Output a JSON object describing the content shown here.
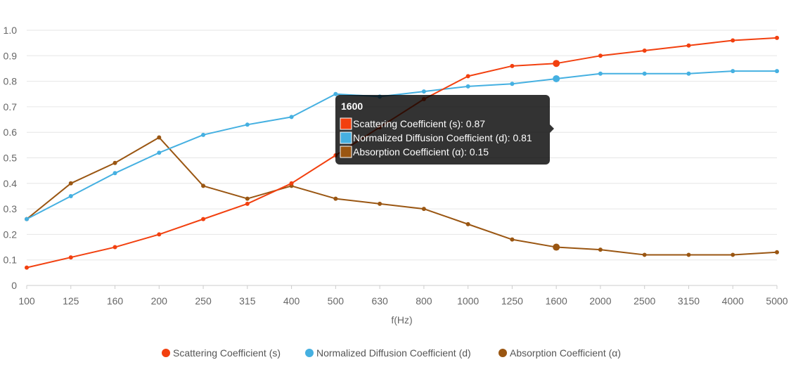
{
  "chart_data": {
    "type": "line",
    "title": "",
    "xlabel": "f(Hz)",
    "ylabel": "",
    "categories": [
      "100",
      "125",
      "160",
      "200",
      "250",
      "315",
      "400",
      "500",
      "630",
      "800",
      "1000",
      "1250",
      "1600",
      "2000",
      "2500",
      "3150",
      "4000",
      "5000"
    ],
    "ylim": [
      0,
      1.0
    ],
    "yticks": [
      0,
      0.1,
      0.2,
      0.3,
      0.4,
      0.5,
      0.6,
      0.7,
      0.8,
      0.9,
      1.0
    ],
    "ytick_labels": [
      "0",
      "0.1",
      "0.2",
      "0.3",
      "0.4",
      "0.5",
      "0.6",
      "0.7",
      "0.8",
      "0.9",
      "1.0"
    ],
    "grid": true,
    "legend_position": "bottom-center",
    "series": [
      {
        "name": "Scattering Coefficient (s)",
        "color": "#f2400f",
        "values": [
          0.07,
          0.11,
          0.15,
          0.2,
          0.26,
          0.32,
          0.4,
          0.51,
          0.62,
          0.73,
          0.82,
          0.86,
          0.87,
          0.9,
          0.92,
          0.94,
          0.96,
          0.97
        ]
      },
      {
        "name": "Normalized Diffusion Coefficient (d)",
        "color": "#45b0e1",
        "values": [
          0.26,
          0.35,
          0.44,
          0.52,
          0.59,
          0.63,
          0.66,
          0.75,
          0.74,
          0.76,
          0.78,
          0.79,
          0.81,
          0.83,
          0.83,
          0.83,
          0.84,
          0.84
        ]
      },
      {
        "name": "Absorption Coefficient (α)",
        "color": "#9a5612",
        "values": [
          0.26,
          0.4,
          0.48,
          0.58,
          0.39,
          0.34,
          0.39,
          0.34,
          0.32,
          0.3,
          0.24,
          0.18,
          0.15,
          0.14,
          0.12,
          0.12,
          0.12,
          0.13
        ]
      }
    ],
    "tooltip": {
      "category": "1600",
      "items": [
        {
          "label": "Scattering Coefficient (s): 0.87",
          "color": "#f2400f"
        },
        {
          "label": "Normalized Diffusion Coefficient (d): 0.81",
          "color": "#45b0e1"
        },
        {
          "label": "Absorption Coefficient (α): 0.15",
          "color": "#9a5612"
        }
      ]
    }
  }
}
